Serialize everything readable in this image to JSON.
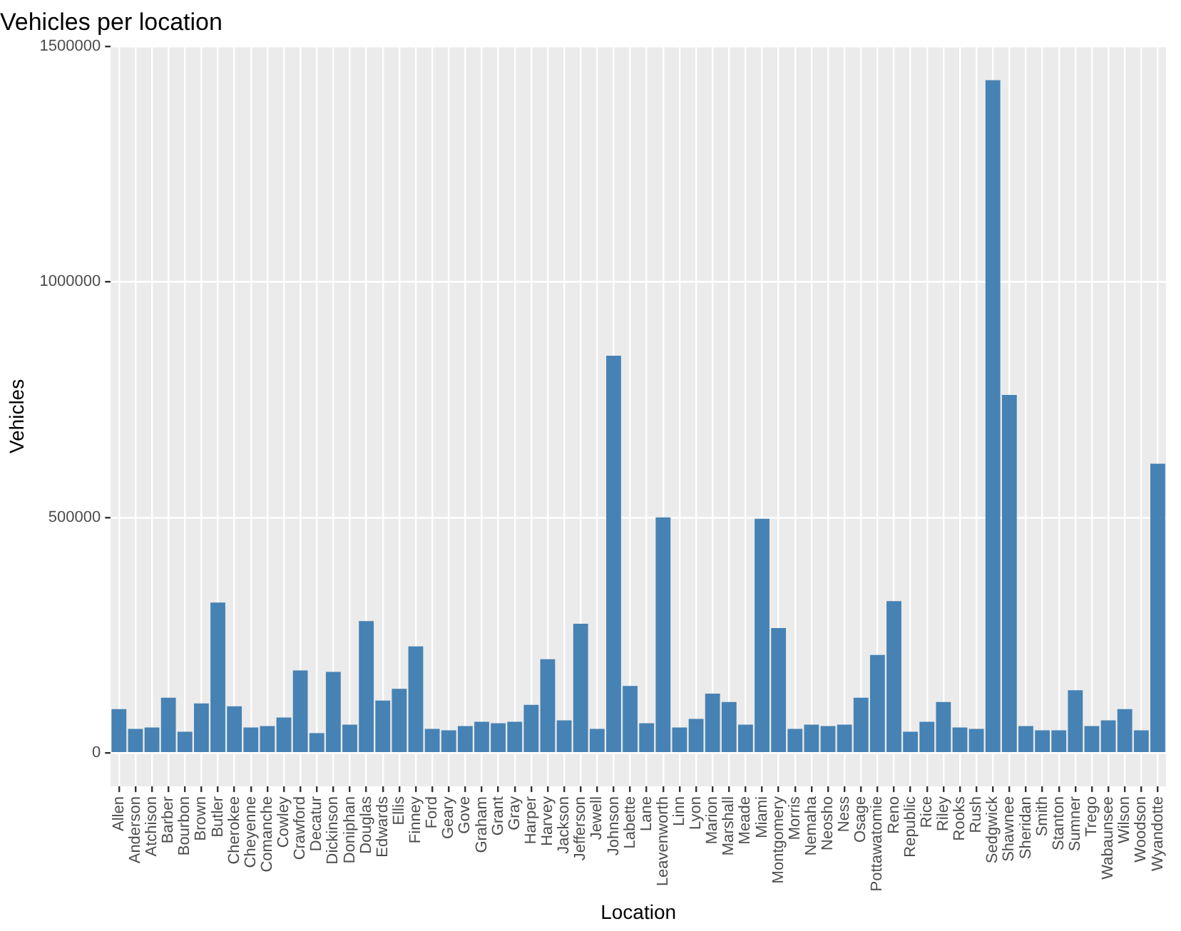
{
  "chart_data": {
    "type": "bar",
    "title": "Vehicles per location",
    "xlabel": "Location",
    "ylabel": "Vehicles",
    "categories": [
      "Allen",
      "Anderson",
      "Atchison",
      "Barber",
      "Bourbon",
      "Brown",
      "Butler",
      "Cherokee",
      "Cheyenne",
      "Comanche",
      "Cowley",
      "Crawford",
      "Decatur",
      "Dickinson",
      "Doniphan",
      "Douglas",
      "Edwards",
      "Ellis",
      "Finney",
      "Ford",
      "Geary",
      "Gove",
      "Graham",
      "Grant",
      "Gray",
      "Harper",
      "Harvey",
      "Jackson",
      "Jefferson",
      "Jewell",
      "Johnson",
      "Labette",
      "Lane",
      "Leavenworth",
      "Linn",
      "Lyon",
      "Marion",
      "Marshall",
      "Meade",
      "Miami",
      "Montgomery",
      "Morris",
      "Nemaha",
      "Neosho",
      "Ness",
      "Osage",
      "Pottawatomie",
      "Reno",
      "Republic",
      "Rice",
      "Riley",
      "Rooks",
      "Rush",
      "Sedgwick",
      "Shawnee",
      "Sheridan",
      "Smith",
      "Stanton",
      "Sumner",
      "Trego",
      "Wabaunsee",
      "Wilson",
      "Woodson",
      "Wyandotte"
    ],
    "values": [
      93000,
      51000,
      54000,
      117000,
      45000,
      105000,
      319000,
      99000,
      54000,
      57000,
      75000,
      175000,
      42000,
      172000,
      60000,
      280000,
      111000,
      136000,
      226000,
      51000,
      48000,
      57000,
      66000,
      63000,
      66000,
      102000,
      199000,
      69000,
      274000,
      51000,
      843000,
      142000,
      63000,
      500000,
      54000,
      72000,
      126000,
      108000,
      60000,
      497000,
      265000,
      51000,
      60000,
      57000,
      60000,
      117000,
      208000,
      322000,
      45000,
      66000,
      108000,
      54000,
      51000,
      1428000,
      760000,
      57000,
      48000,
      48000,
      133000,
      57000,
      69000,
      93000,
      48000,
      614000
    ],
    "color": "#4682b4",
    "ylim": [
      -71000,
      1500000
    ],
    "yticks": [
      0,
      500000,
      1000000,
      1500000
    ],
    "grid": true,
    "legend": false
  }
}
